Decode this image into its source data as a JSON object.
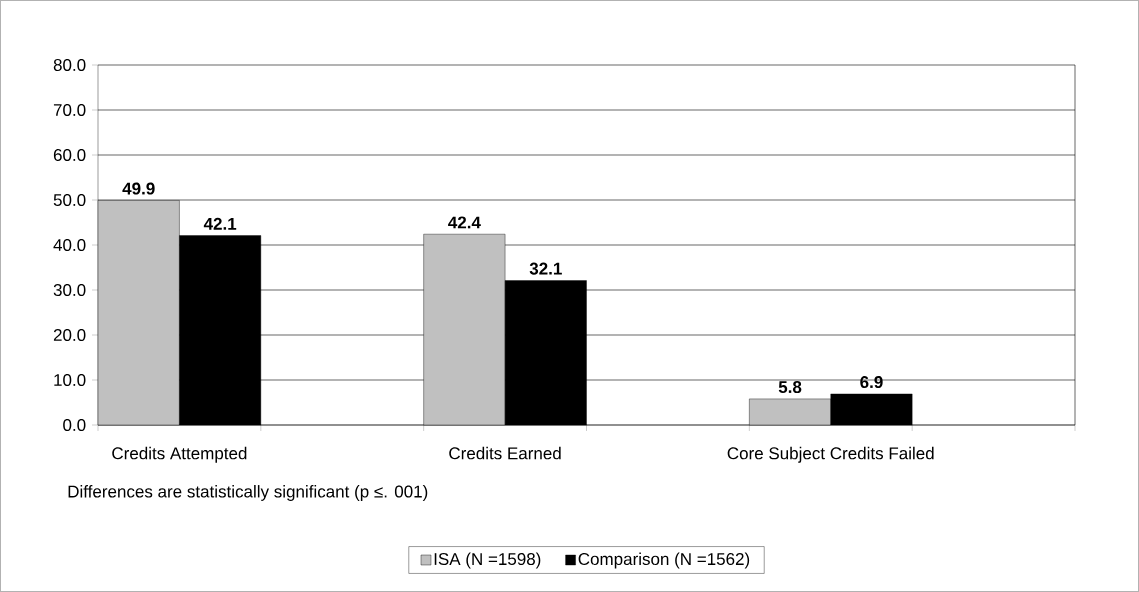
{
  "chart_data": {
    "type": "bar",
    "categories": [
      "Credits Attempted",
      "Credits Earned",
      "Core Subject Credits Failed"
    ],
    "series": [
      {
        "name": "ISA (N =1598)",
        "color": "#c0c0c0",
        "values": [
          49.9,
          42.4,
          5.8
        ]
      },
      {
        "name": "Comparison (N =1562)",
        "color": "#000000",
        "values": [
          42.1,
          32.1,
          6.9
        ]
      }
    ],
    "ylim": [
      0,
      80
    ],
    "yticks": [
      {
        "value": 0,
        "label": "0.0"
      },
      {
        "value": 10,
        "label": "10.0"
      },
      {
        "value": 20,
        "label": "20.0"
      },
      {
        "value": 30,
        "label": "30.0"
      },
      {
        "value": 40,
        "label": "40.0"
      },
      {
        "value": 50,
        "label": "50.0"
      },
      {
        "value": 60,
        "label": "60.0"
      },
      {
        "value": 70,
        "label": "70.0"
      },
      {
        "value": 80,
        "label": "80.0"
      }
    ],
    "grid": "y",
    "data_labels": true,
    "legend": "bottom",
    "annotations": [
      "Differences are statistically significant (p ≤. 001)"
    ]
  }
}
